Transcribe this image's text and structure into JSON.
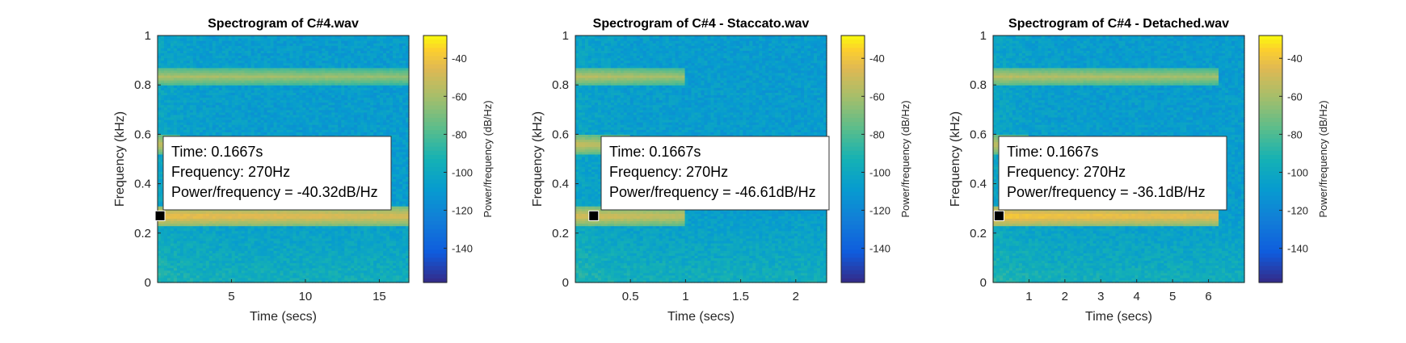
{
  "chart_data": [
    {
      "type": "heatmap",
      "title": "Spectrogram of C#4.wav",
      "xlabel": "Time (secs)",
      "ylabel": "Frequency (kHz)",
      "xlim": [
        0,
        17
      ],
      "ylim": [
        0,
        1
      ],
      "xticks": [
        5,
        10,
        15
      ],
      "yticks": [
        0,
        0.2,
        0.4,
        0.6,
        0.8,
        1
      ],
      "colorbar": {
        "label": "Power/frequency (dB/Hz)",
        "ticks": [
          -40,
          -60,
          -80,
          -100,
          -120,
          -140
        ],
        "range": [
          -158,
          -28
        ]
      },
      "bands": [
        {
          "freq_khz": 0.27,
          "end_secs": 17,
          "peak_db": -40
        },
        {
          "freq_khz": 0.835,
          "end_secs": 17,
          "peak_db": -58
        },
        {
          "freq_khz": 0.56,
          "end_secs": 1.5,
          "peak_db": -50
        }
      ],
      "datatip": {
        "time": "Time: 0.1667s",
        "frequency": "Frequency: 270Hz",
        "power": "Power/frequency = -40.32dB/Hz",
        "x": 0.1667,
        "y": 0.27
      }
    },
    {
      "type": "heatmap",
      "title": "Spectrogram of C#4 - Staccato.wav",
      "xlabel": "Time (secs)",
      "ylabel": "Frequency (kHz)",
      "xlim": [
        0,
        2.28
      ],
      "ylim": [
        0,
        1
      ],
      "xticks": [
        0.5,
        1,
        1.5,
        2
      ],
      "yticks": [
        0,
        0.2,
        0.4,
        0.6,
        0.8,
        1
      ],
      "colorbar": {
        "label": "Power/frequency (dB/Hz)",
        "ticks": [
          -40,
          -60,
          -80,
          -100,
          -120,
          -140
        ],
        "range": [
          -158,
          -28
        ]
      },
      "bands": [
        {
          "freq_khz": 0.27,
          "end_secs": 1.0,
          "peak_db": -46
        },
        {
          "freq_khz": 0.835,
          "end_secs": 1.0,
          "peak_db": -55
        },
        {
          "freq_khz": 0.56,
          "end_secs": 0.5,
          "peak_db": -50
        }
      ],
      "datatip": {
        "time": "Time: 0.1667s",
        "frequency": "Frequency: 270Hz",
        "power": "Power/frequency = -46.61dB/Hz",
        "x": 0.1667,
        "y": 0.27
      }
    },
    {
      "type": "heatmap",
      "title": "Spectrogram of C#4 - Detached.wav",
      "xlabel": "Time (secs)",
      "ylabel": "Frequency (kHz)",
      "xlim": [
        0,
        7
      ],
      "ylim": [
        0,
        1
      ],
      "xticks": [
        1,
        2,
        3,
        4,
        5,
        6
      ],
      "yticks": [
        0,
        0.2,
        0.4,
        0.6,
        0.8,
        1
      ],
      "colorbar": {
        "label": "Power/frequency (dB/Hz)",
        "ticks": [
          -40,
          -60,
          -80,
          -100,
          -120,
          -140
        ],
        "range": [
          -158,
          -28
        ]
      },
      "bands": [
        {
          "freq_khz": 0.27,
          "end_secs": 6.3,
          "peak_db": -36
        },
        {
          "freq_khz": 0.835,
          "end_secs": 6.3,
          "peak_db": -55
        },
        {
          "freq_khz": 0.56,
          "end_secs": 1.0,
          "peak_db": -50
        }
      ],
      "datatip": {
        "time": "Time: 0.1667s",
        "frequency": "Frequency: 270Hz",
        "power": "Power/frequency = -36.1dB/Hz",
        "x": 0.1667,
        "y": 0.27
      }
    }
  ]
}
